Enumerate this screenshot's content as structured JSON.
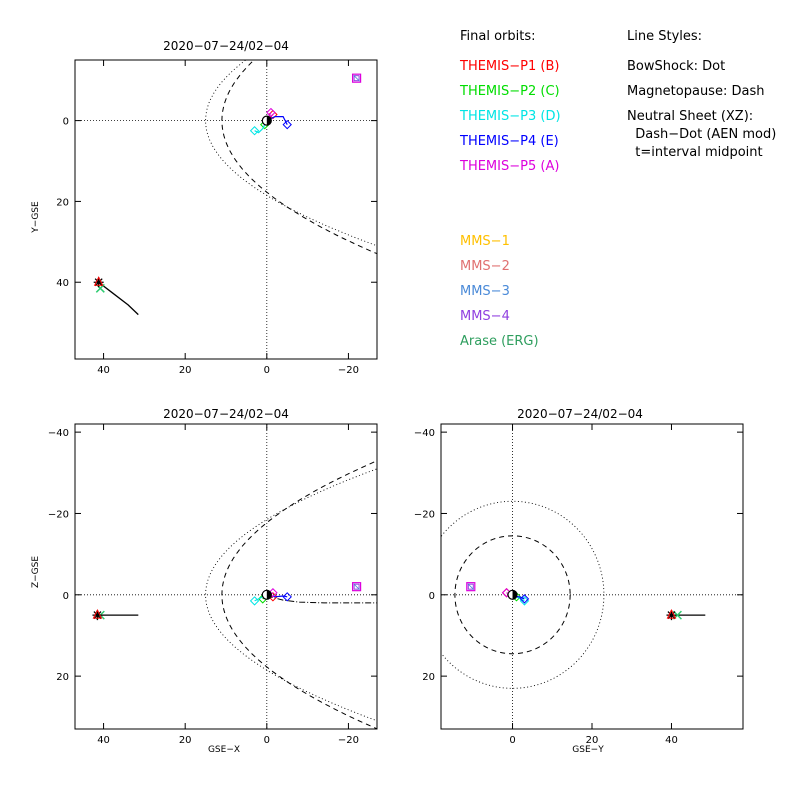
{
  "legend": {
    "final_orbits_title": "Final orbits:",
    "line_styles_title": "Line Styles:",
    "themis": [
      {
        "label": "THEMIS−P1 (B)",
        "color": "#ff0000"
      },
      {
        "label": "THEMIS−P2 (C)",
        "color": "#00dd00"
      },
      {
        "label": "THEMIS−P3 (D)",
        "color": "#00e5e5"
      },
      {
        "label": "THEMIS−P4 (E)",
        "color": "#0000ff"
      },
      {
        "label": "THEMIS−P5 (A)",
        "color": "#dd00dd"
      }
    ],
    "mms": [
      {
        "label": "MMS−1",
        "color": "#ffc000"
      },
      {
        "label": "MMS−2",
        "color": "#e07070"
      },
      {
        "label": "MMS−3",
        "color": "#4a8ad8"
      },
      {
        "label": "MMS−4",
        "color": "#9040e0"
      },
      {
        "label": "Arase (ERG)",
        "color": "#2e9e5e"
      }
    ],
    "styles": [
      "BowShock: Dot",
      "Magnetopause: Dash",
      "Neutral Sheet (XZ):",
      "  Dash−Dot (AEN mod)",
      "  t=interval midpoint"
    ]
  },
  "chart_data": [
    {
      "type": "scatter",
      "title": "2020−07−24/02−04",
      "xlabel": "",
      "ylabel": "Y−GSE",
      "xlim": [
        47,
        -27
      ],
      "ylim": [
        59,
        -15
      ],
      "xticks": [
        "40",
        "20",
        "0",
        "−20"
      ],
      "xtick_values": [
        40,
        20,
        0,
        -20
      ],
      "yticks": [
        "0",
        "20",
        "40"
      ],
      "ytick_values": [
        0,
        20,
        40
      ],
      "bow_shock": {
        "nose": 15,
        "flare": 0.35,
        "sign": 1
      },
      "magnetopause": {
        "nose": 11,
        "flare": 0.28,
        "sign": 1
      },
      "neutral_sheet": [],
      "moon_track": [
        [
          41.5,
          39.8
        ],
        [
          38,
          42.5
        ],
        [
          34,
          45.6
        ],
        [
          31.5,
          48
        ]
      ],
      "moon_marker": [
        41.2,
        40
      ],
      "erg_marker": [
        40.8,
        41.5
      ],
      "themis_p5_far": [
        -22,
        -10.5
      ],
      "themis_cluster": [
        {
          "name": "THEMIS−P1 (B)",
          "color": "#ff0000",
          "points": [
            [
              0,
              0
            ],
            [
              -1.5,
              -1.5
            ]
          ]
        },
        {
          "name": "THEMIS−P2 (C)",
          "color": "#00dd00",
          "points": [
            [
              0,
              0
            ],
            [
              0.5,
              1
            ]
          ]
        },
        {
          "name": "THEMIS−P3 (D)",
          "color": "#00e5e5",
          "points": [
            [
              0,
              0
            ],
            [
              1,
              2
            ],
            [
              2,
              3
            ],
            [
              3,
              2.5
            ]
          ]
        },
        {
          "name": "THEMIS−P4 (E)",
          "color": "#0000ff",
          "points": [
            [
              0,
              0
            ],
            [
              -2,
              -1
            ],
            [
              -4,
              -1
            ],
            [
              -5,
              1
            ]
          ]
        },
        {
          "name": "THEMIS−P5 (A)",
          "color": "#dd00dd",
          "points": [
            [
              0,
              0
            ],
            [
              -1,
              -2
            ]
          ]
        }
      ]
    },
    {
      "type": "scatter",
      "title": "2020−07−24/02−04",
      "xlabel": "GSE−X",
      "ylabel": "Z−GSE",
      "xlim": [
        47,
        -27
      ],
      "ylim": [
        33,
        -42
      ],
      "xticks": [
        "40",
        "20",
        "0",
        "−20"
      ],
      "xtick_values": [
        40,
        20,
        0,
        -20
      ],
      "yticks": [
        "20",
        "0",
        "−20",
        "−40"
      ],
      "ytick_values": [
        20,
        0,
        -20,
        -40
      ],
      "bow_shock": {
        "nose": 15,
        "flare": 0.35,
        "sign": 1
      },
      "magnetopause": {
        "nose": 11,
        "flare": 0.28,
        "sign": 1
      },
      "neutral_sheet": [
        [
          0,
          0.3
        ],
        [
          -4,
          1.3
        ],
        [
          -8,
          1.8
        ],
        [
          -14,
          2
        ],
        [
          -27,
          2
        ]
      ],
      "moon_track": [
        [
          41.5,
          5
        ],
        [
          31.5,
          5
        ]
      ],
      "moon_marker": [
        41.5,
        5
      ],
      "erg_marker": [
        40.8,
        5
      ],
      "themis_p5_far": [
        -22,
        -2
      ],
      "themis_cluster": [
        {
          "name": "THEMIS−P1 (B)",
          "color": "#ff0000",
          "points": [
            [
              0,
              0
            ],
            [
              -1.5,
              0.5
            ]
          ]
        },
        {
          "name": "THEMIS−P2 (C)",
          "color": "#00dd00",
          "points": [
            [
              0,
              0
            ],
            [
              1,
              1
            ]
          ]
        },
        {
          "name": "THEMIS−P3 (D)",
          "color": "#00e5e5",
          "points": [
            [
              0,
              0
            ],
            [
              2,
              1
            ],
            [
              3,
              1.5
            ]
          ]
        },
        {
          "name": "THEMIS−P4 (E)",
          "color": "#0000ff",
          "points": [
            [
              0,
              0
            ],
            [
              -2,
              0.5
            ],
            [
              -4,
              0.3
            ],
            [
              -5,
              0.5
            ]
          ]
        },
        {
          "name": "THEMIS−P5 (A)",
          "color": "#dd00dd",
          "points": [
            [
              0,
              0
            ],
            [
              -1.5,
              -0.5
            ]
          ]
        }
      ]
    },
    {
      "type": "scatter",
      "title": "2020−07−24/02−04",
      "xlabel": "GSE−Y",
      "ylabel": "",
      "xlim": [
        -18,
        58
      ],
      "ylim": [
        33,
        -42
      ],
      "xticks": [
        "0",
        "20",
        "40"
      ],
      "xtick_values": [
        0,
        20,
        40
      ],
      "yticks": [
        "20",
        "0",
        "−20",
        "−40"
      ],
      "ytick_values": [
        20,
        0,
        -20,
        -40
      ],
      "bow_shock_circle": 23,
      "magnetopause_circle": 14.5,
      "moon_track": [
        [
          40,
          5
        ],
        [
          48.5,
          5
        ]
      ],
      "moon_marker": [
        40,
        5
      ],
      "erg_marker": [
        41.5,
        5
      ],
      "themis_p5_far": [
        -10.5,
        -2
      ],
      "themis_cluster": [
        {
          "name": "THEMIS−P1 (B)",
          "color": "#ff0000",
          "points": [
            [
              0,
              0
            ],
            [
              -1.5,
              -0.5
            ]
          ]
        },
        {
          "name": "THEMIS−P2 (C)",
          "color": "#00dd00",
          "points": [
            [
              0,
              0
            ],
            [
              1,
              0.5
            ]
          ]
        },
        {
          "name": "THEMIS−P3 (D)",
          "color": "#00e5e5",
          "points": [
            [
              0,
              0
            ],
            [
              2,
              1
            ],
            [
              3,
              1.5
            ]
          ]
        },
        {
          "name": "THEMIS−P4 (E)",
          "color": "#0000ff",
          "points": [
            [
              0,
              0
            ],
            [
              1,
              0.4
            ],
            [
              2,
              0.6
            ],
            [
              3,
              1
            ]
          ]
        },
        {
          "name": "THEMIS−P5 (A)",
          "color": "#dd00dd",
          "points": [
            [
              0,
              0
            ],
            [
              -1.5,
              -0.5
            ]
          ]
        }
      ]
    }
  ]
}
